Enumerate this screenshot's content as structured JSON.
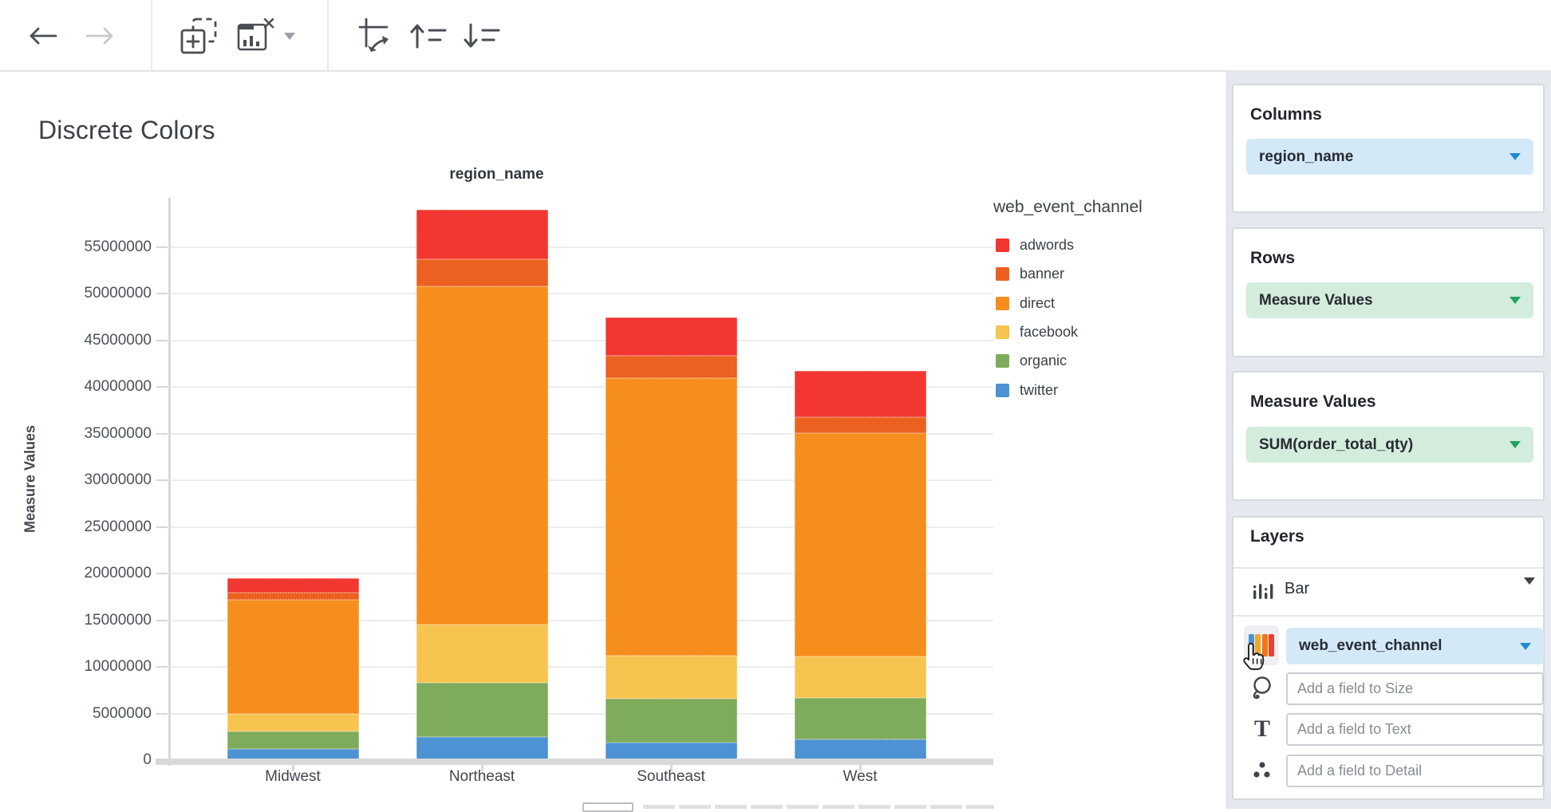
{
  "page": {
    "title": "Discrete Colors"
  },
  "toolbar": {
    "icons": [
      "back-arrow",
      "forward-arrow",
      "duplicate-chart",
      "clear-chart",
      "clear-chart-caret",
      "swap-axes",
      "sort-ascending",
      "sort-descending"
    ]
  },
  "chart_data": {
    "type": "bar",
    "stacked": true,
    "title": "region_name",
    "xlabel": "region_name",
    "ylabel": "Measure Values",
    "categories": [
      "Midwest",
      "Northeast",
      "Southeast",
      "West"
    ],
    "series": [
      {
        "name": "adwords",
        "color": "#F23730",
        "values": [
          1500000,
          5300000,
          4100000,
          4900000
        ]
      },
      {
        "name": "banner",
        "color": "#EC611F",
        "values": [
          800000,
          2900000,
          2400000,
          1700000
        ]
      },
      {
        "name": "direct",
        "color": "#F68E1E",
        "values": [
          12200000,
          36300000,
          29800000,
          24000000
        ]
      },
      {
        "name": "facebook",
        "color": "#F7C44F",
        "values": [
          1900000,
          6200000,
          4600000,
          4400000
        ]
      },
      {
        "name": "organic",
        "color": "#7FAC5C",
        "values": [
          1900000,
          5800000,
          4700000,
          4500000
        ]
      },
      {
        "name": "twitter",
        "color": "#4D92D2",
        "values": [
          1200000,
          2500000,
          1900000,
          2200000
        ]
      }
    ],
    "stack_order_bottom_to_top": [
      "twitter",
      "organic",
      "facebook",
      "direct",
      "banner",
      "adwords"
    ],
    "y_ticks": [
      0,
      5000000,
      10000000,
      15000000,
      20000000,
      25000000,
      30000000,
      35000000,
      40000000,
      45000000,
      50000000,
      55000000
    ],
    "ylim": [
      0,
      60300000
    ],
    "grid": true,
    "legend_title": "web_event_channel",
    "legend_position": "right"
  },
  "panel": {
    "columns": {
      "header": "Columns",
      "pill": "region_name"
    },
    "rows": {
      "header": "Rows",
      "pill": "Measure Values"
    },
    "measure_values": {
      "header": "Measure Values",
      "pill": "SUM(order_total_qty)"
    },
    "layers": {
      "header": "Layers",
      "layer_type": "Bar",
      "color_field": "web_event_channel",
      "size_placeholder": "Add a field to Size",
      "text_placeholder": "Add a field to Text",
      "detail_placeholder": "Add a field to Detail"
    },
    "accent_colors": {
      "blue_pill": "#d4e9f8",
      "green_pill": "#d3ecdb",
      "blue_caret": "#1d8bd1",
      "green_caret": "#1fa15d"
    }
  }
}
